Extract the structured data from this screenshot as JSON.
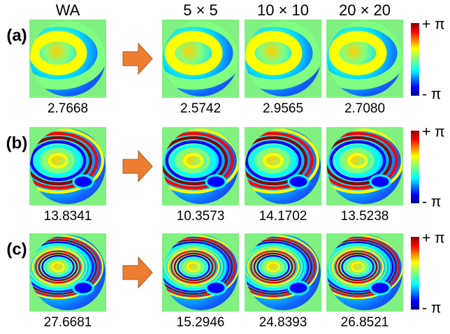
{
  "columns": [
    "WA",
    "5 × 5",
    "10 × 10",
    "20 × 20"
  ],
  "rows": [
    {
      "label": "(a)",
      "values": [
        "2.7668",
        "2.5742",
        "2.9565",
        "2.7080"
      ]
    },
    {
      "label": "(b)",
      "values": [
        "13.8341",
        "10.3573",
        "14.1702",
        "13.5238"
      ]
    },
    {
      "label": "(c)",
      "values": [
        "27.6681",
        "15.2946",
        "24.8393",
        "26.8521"
      ]
    }
  ],
  "colorbar": {
    "max_label": "+ π",
    "min_label": "- π"
  }
}
